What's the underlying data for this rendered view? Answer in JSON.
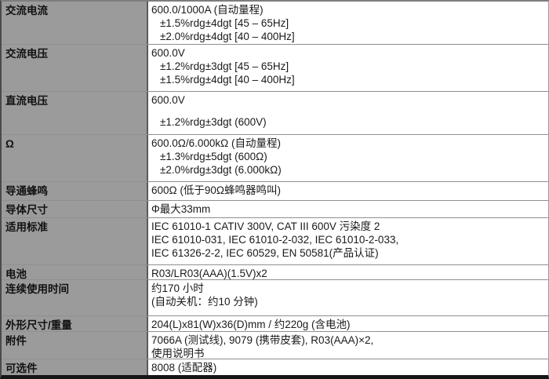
{
  "table": {
    "colors": {
      "label_bg": "#9b9b9b",
      "row_line": "#8f8f8f",
      "divider": "#5a5a5a",
      "bottom_border": "#161616"
    },
    "rows": [
      {
        "label": "交流电流",
        "lines": [
          {
            "text": "600.0/1000A (自动量程)"
          },
          {
            "text": "±1.5%rdg±4dgt [45 – 65Hz]",
            "indent": true
          },
          {
            "text": "±2.0%rdg±4dgt [40 – 400Hz]",
            "indent": true
          }
        ]
      },
      {
        "label": "交流电压",
        "lines": [
          {
            "text": "600.0V"
          },
          {
            "text": "±1.2%rdg±3dgt [45 – 65Hz]",
            "indent": true
          },
          {
            "text": "±1.5%rdg±4dgt [40 – 400Hz]",
            "indent": true
          }
        ]
      },
      {
        "label": "直流电压",
        "lines": [
          {
            "text": "600.0V"
          },
          {
            "text": "±1.2%rdg±3dgt (600V)",
            "indent": true,
            "gap": true
          }
        ]
      },
      {
        "label": "Ω",
        "lines": [
          {
            "text": "600.0Ω/6.000kΩ (自动量程)"
          },
          {
            "text": "±1.3%rdg±5dgt (600Ω)",
            "indent": true
          },
          {
            "text": "±2.0%rdg±3dgt (6.000kΩ)",
            "indent": true
          }
        ]
      },
      {
        "label": "导通蜂鸣",
        "lines": [
          {
            "text": "600Ω (低于90Ω蜂鸣器鸣叫)"
          }
        ]
      },
      {
        "label": "导体尺寸",
        "lines": [
          {
            "text": "Φ最大33mm"
          }
        ]
      },
      {
        "label": "适用标准",
        "lines": [
          {
            "text": "IEC 61010-1 CATIV 300V, CAT III 600V 污染度 2"
          },
          {
            "text": "IEC 61010-031, IEC 61010-2-032, IEC 61010-2-033,"
          },
          {
            "text": "IEC 61326-2-2, IEC 60529, EN 50581(产品认证)"
          }
        ]
      },
      {
        "label": "电池",
        "lines": [
          {
            "text": "R03/LR03(AAA)(1.5V)x2"
          }
        ]
      },
      {
        "label": "连续使用时间",
        "lines": [
          {
            "text": "约170 小时"
          },
          {
            "text": "(自动关机：约10 分钟)"
          }
        ]
      },
      {
        "label": "外形尺寸/重量",
        "lines": [
          {
            "text": "204(L)x81(W)x36(D)mm / 约220g (含电池)"
          }
        ]
      },
      {
        "label": "附件",
        "lines": [
          {
            "text": "7066A (测试线), 9079 (携带皮套), R03(AAA)×2,"
          },
          {
            "text": "使用说明书"
          }
        ]
      },
      {
        "label": "可选件",
        "lines": [
          {
            "text": "8008 (适配器)"
          }
        ]
      }
    ]
  }
}
